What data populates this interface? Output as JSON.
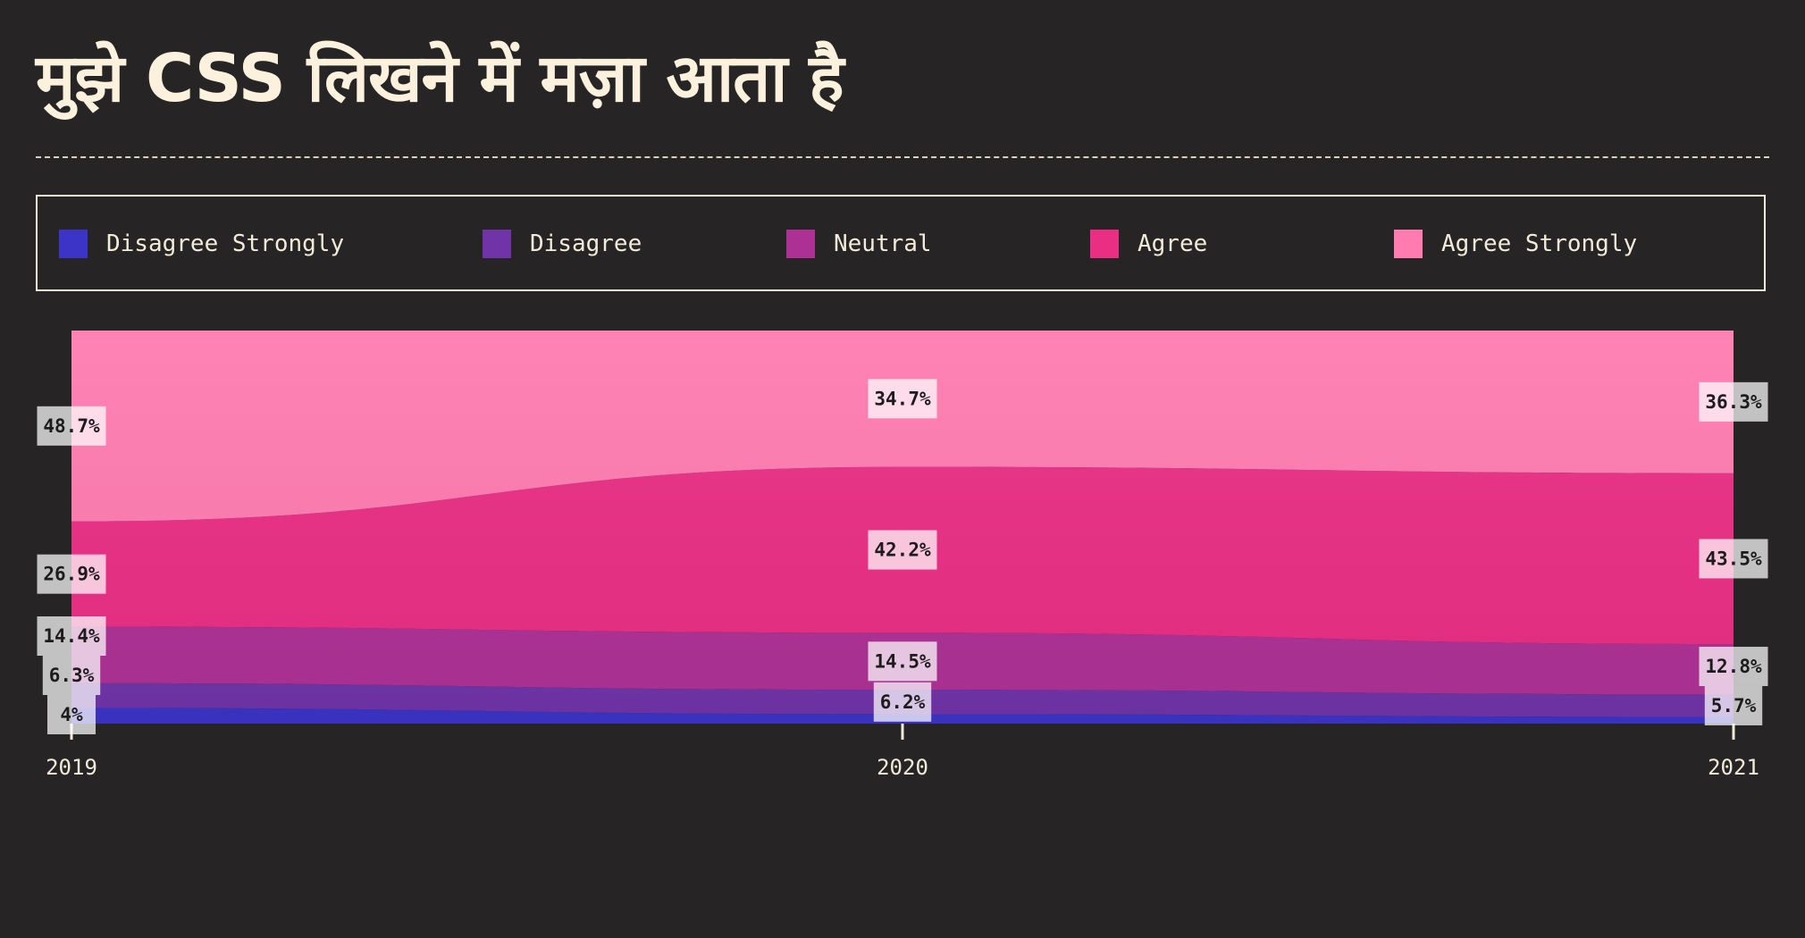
{
  "title": "मुझे CSS लिखने में मज़ा आता है",
  "legend": [
    {
      "label": "Disagree Strongly",
      "color": "#3b34c7"
    },
    {
      "label": "Disagree",
      "color": "#7034a8"
    },
    {
      "label": "Neutral",
      "color": "#ad3195"
    },
    {
      "label": "Agree",
      "color": "#ea2e84"
    },
    {
      "label": "Agree Strongly",
      "color": "#ff7bb0"
    }
  ],
  "chart_data": {
    "type": "area",
    "stacked": "percent",
    "x": [
      "2019",
      "2020",
      "2021"
    ],
    "series": [
      {
        "name": "Disagree Strongly",
        "color": "#3b34c7",
        "values": [
          4,
          2.4,
          1.7
        ],
        "labels": [
          "4%",
          "",
          ""
        ]
      },
      {
        "name": "Disagree",
        "color": "#7034a8",
        "values": [
          6.3,
          6.2,
          5.7
        ],
        "labels": [
          "6.3%",
          "6.2%",
          "5.7%"
        ]
      },
      {
        "name": "Neutral",
        "color": "#ad3195",
        "values": [
          14.4,
          14.5,
          12.8
        ],
        "labels": [
          "14.4%",
          "14.5%",
          "12.8%"
        ]
      },
      {
        "name": "Agree",
        "color": "#ea2e84",
        "values": [
          26.9,
          42.2,
          43.5
        ],
        "labels": [
          "26.9%",
          "42.2%",
          "43.5%"
        ]
      },
      {
        "name": "Agree Strongly",
        "color": "#ff7bb0",
        "values": [
          48.7,
          34.7,
          36.3
        ],
        "labels": [
          "48.7%",
          "34.7%",
          "36.3%"
        ]
      }
    ],
    "ylim": [
      0,
      100
    ],
    "legend_position": "top"
  }
}
